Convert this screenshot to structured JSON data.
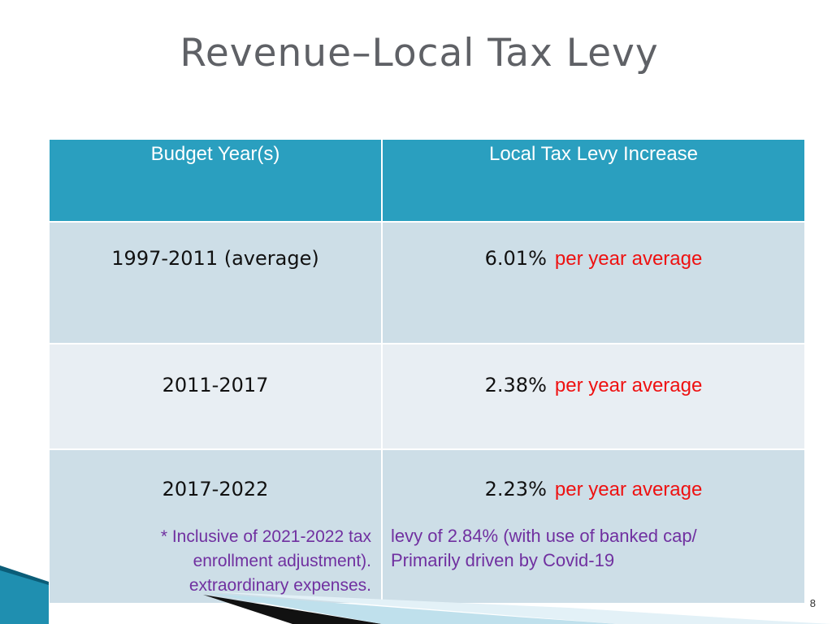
{
  "slide": {
    "title": "Revenue–Local Tax Levy",
    "page_number": "8"
  },
  "table": {
    "headers": [
      "Budget Year(s)",
      "Local Tax Levy Increase"
    ],
    "rows": [
      {
        "years": "1997-2011 (average)",
        "percent": "6.01%",
        "suffix": "per year average"
      },
      {
        "years": "2011-2017",
        "percent": "2.38%",
        "suffix": "per year average"
      },
      {
        "years": "2017-2022",
        "percent": "2.23%",
        "suffix": "per year average",
        "note_left": [
          "* Inclusive of 2021-2022 tax",
          "enrollment adjustment).",
          "extraordinary expenses."
        ],
        "note_right": [
          "levy of 2.84% (with use of banked cap/",
          "Primarily driven by Covid-19"
        ]
      }
    ]
  },
  "colors": {
    "header_bg": "#2a9fbf",
    "row_dark": "#cddee7",
    "row_light": "#e8eef3",
    "highlight": "#ee1111",
    "note": "#7030a0"
  }
}
